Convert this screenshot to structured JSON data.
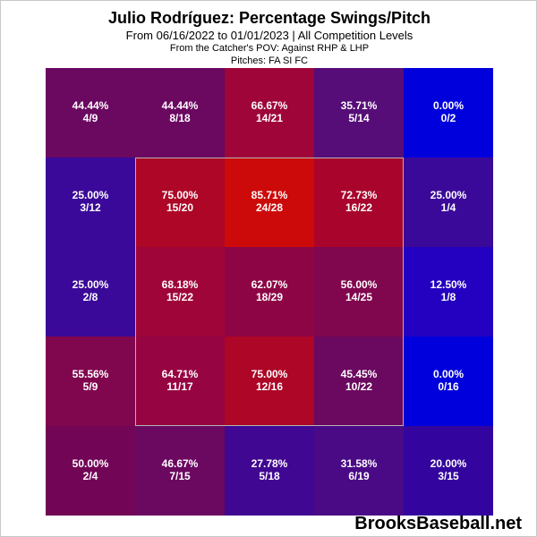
{
  "title": "Julio Rodríguez: Percentage Swings/Pitch",
  "subtitle": "From 06/16/2022 to 01/01/2023 | All Competition Levels",
  "pov_line": "From the Catcher's POV:   Against RHP & LHP",
  "pitches_line": "Pitches:  FA  SI  FC",
  "watermark": "BrooksBaseball.net",
  "chart_data": {
    "type": "heatmap",
    "title": "Julio Rodríguez: Percentage Swings/Pitch",
    "rows": 5,
    "cols": 5,
    "cells": [
      [
        {
          "pct": "44.44%",
          "ratio": "4/9",
          "value": 44.44,
          "color": "#6b0860"
        },
        {
          "pct": "44.44%",
          "ratio": "8/18",
          "value": 44.44,
          "color": "#6b0860"
        },
        {
          "pct": "66.67%",
          "ratio": "14/21",
          "value": 66.67,
          "color": "#9f0538"
        },
        {
          "pct": "35.71%",
          "ratio": "5/14",
          "value": 35.71,
          "color": "#560d78"
        },
        {
          "pct": "0.00%",
          "ratio": "0/2",
          "value": 0.0,
          "color": "#0000dc"
        }
      ],
      [
        {
          "pct": "25.00%",
          "ratio": "3/12",
          "value": 25.0,
          "color": "#3a0999"
        },
        {
          "pct": "75.00%",
          "ratio": "15/20",
          "value": 75.0,
          "color": "#ad0626"
        },
        {
          "pct": "85.71%",
          "ratio": "24/28",
          "value": 85.71,
          "color": "#cc0a0a"
        },
        {
          "pct": "72.73%",
          "ratio": "16/22",
          "value": 72.73,
          "color": "#a8042c"
        },
        {
          "pct": "25.00%",
          "ratio": "1/4",
          "value": 25.0,
          "color": "#3a0999"
        }
      ],
      [
        {
          "pct": "25.00%",
          "ratio": "2/8",
          "value": 25.0,
          "color": "#3a0999"
        },
        {
          "pct": "68.18%",
          "ratio": "15/22",
          "value": 68.18,
          "color": "#9f0538"
        },
        {
          "pct": "62.07%",
          "ratio": "18/29",
          "value": 62.07,
          "color": "#8e0545"
        },
        {
          "pct": "56.00%",
          "ratio": "14/25",
          "value": 56.0,
          "color": "#80064e"
        },
        {
          "pct": "12.50%",
          "ratio": "1/8",
          "value": 12.5,
          "color": "#2400c0"
        }
      ],
      [
        {
          "pct": "55.56%",
          "ratio": "5/9",
          "value": 55.56,
          "color": "#80064e"
        },
        {
          "pct": "64.71%",
          "ratio": "11/17",
          "value": 64.71,
          "color": "#960442"
        },
        {
          "pct": "75.00%",
          "ratio": "12/16",
          "value": 75.0,
          "color": "#ad0626"
        },
        {
          "pct": "45.45%",
          "ratio": "10/22",
          "value": 45.45,
          "color": "#6b0860"
        },
        {
          "pct": "0.00%",
          "ratio": "0/16",
          "value": 0.0,
          "color": "#0000dc"
        }
      ],
      [
        {
          "pct": "50.00%",
          "ratio": "2/4",
          "value": 50.0,
          "color": "#720556"
        },
        {
          "pct": "46.67%",
          "ratio": "7/15",
          "value": 46.67,
          "color": "#6b0860"
        },
        {
          "pct": "27.78%",
          "ratio": "5/18",
          "value": 27.78,
          "color": "#400892"
        },
        {
          "pct": "31.58%",
          "ratio": "6/19",
          "value": 31.58,
          "color": "#4a0a86"
        },
        {
          "pct": "20.00%",
          "ratio": "3/15",
          "value": 20.0,
          "color": "#33059e"
        }
      ]
    ],
    "strike_zone": {
      "row_start": 1,
      "row_end": 3,
      "col_start": 1,
      "col_end": 3
    },
    "grid": false,
    "legend": "none"
  }
}
